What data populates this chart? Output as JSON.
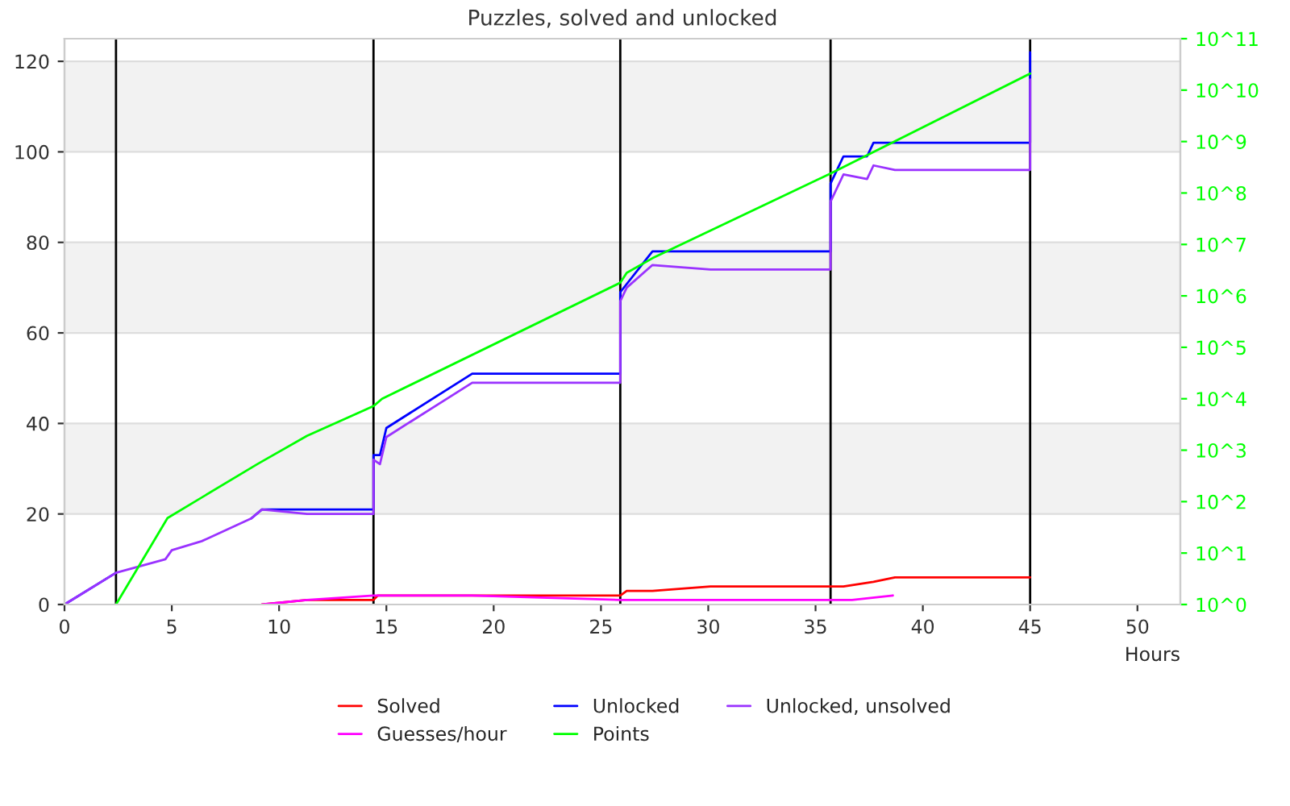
{
  "chart_data": {
    "type": "line",
    "title": "Puzzles, solved and unlocked",
    "xlabel": "Hours",
    "xlim": [
      0,
      52
    ],
    "xticks": [
      0,
      5,
      10,
      15,
      20,
      25,
      30,
      35,
      40,
      45,
      50
    ],
    "ylim": [
      0,
      125
    ],
    "yticks": [
      0,
      20,
      40,
      60,
      80,
      100,
      120
    ],
    "y2lim": [
      1,
      100000000000
    ],
    "y2ticks": [
      {
        "value": 1,
        "label": "10^0"
      },
      {
        "value": 10,
        "label": "10^1"
      },
      {
        "value": 100,
        "label": "10^2"
      },
      {
        "value": 1000,
        "label": "10^3"
      },
      {
        "value": 10000,
        "label": "10^4"
      },
      {
        "value": 100000,
        "label": "10^5"
      },
      {
        "value": 1000000,
        "label": "10^6"
      },
      {
        "value": 10000000,
        "label": "10^7"
      },
      {
        "value": 100000000,
        "label": "10^8"
      },
      {
        "value": 1000000000,
        "label": "10^9"
      },
      {
        "value": 10000000000,
        "label": "10^10"
      },
      {
        "value": 100000000000,
        "label": "10^11"
      }
    ],
    "log": "y2",
    "grid": "y",
    "legend": "bottom",
    "marker": "none",
    "line_style": "solid",
    "ref_lines": [
      {
        "axis": "x",
        "value": 2.4,
        "color": "#000000"
      },
      {
        "axis": "x",
        "value": 14.4,
        "color": "#000000"
      },
      {
        "axis": "x",
        "value": 25.9,
        "color": "#000000"
      },
      {
        "axis": "x",
        "value": 35.7,
        "color": "#000000"
      },
      {
        "axis": "x",
        "value": 45.0,
        "color": "#000000"
      }
    ],
    "series": [
      {
        "name": "Solved",
        "color": "#ff0000",
        "x": [
          9.2,
          11.3,
          14.4,
          14.6,
          25.9,
          26.2,
          27.4,
          30.1,
          36.3,
          37.7,
          38.7,
          45.0
        ],
        "values": [
          0,
          1,
          1,
          2,
          2,
          3,
          3,
          4,
          4,
          5,
          6,
          6
        ]
      },
      {
        "name": "Guesses/hour",
        "color": "#ff00ff",
        "x": [
          9.2,
          11.3,
          14.4,
          19.0,
          25.9,
          36.7,
          38.6
        ],
        "values": [
          0,
          1,
          2,
          2,
          1,
          1,
          2
        ]
      },
      {
        "name": "Unlocked",
        "color": "#0000ff",
        "x": [
          0,
          2.4,
          4.7,
          5.0,
          6.4,
          8.7,
          9.2,
          14.4,
          14.4,
          14.7,
          15.0,
          19.0,
          25.9,
          25.9,
          27.4,
          35.7,
          35.7,
          36.3,
          37.4,
          37.7,
          45.0,
          45.0
        ],
        "values": [
          0,
          7,
          null,
          null,
          null,
          19,
          21,
          21,
          33,
          33,
          39,
          51,
          51,
          69,
          78,
          78,
          93,
          99,
          99,
          102,
          102,
          122
        ]
      },
      {
        "name": "Points",
        "color": "#00ff00",
        "axis": "y2",
        "x": [
          2.4,
          4.8,
          9.0,
          11.3,
          14.4,
          14.8,
          25.9,
          26.2,
          27.4,
          35.7,
          45.0
        ],
        "values": [
          1,
          48,
          540,
          1900,
          7200,
          10000,
          1800000,
          2800000,
          5400000,
          240000000,
          21000000000
        ]
      },
      {
        "name": "Unlocked, unsolved",
        "color": "#9a32ff",
        "x": [
          0,
          2.4,
          4.7,
          5.0,
          6.4,
          8.7,
          9.2,
          11.3,
          14.4,
          14.4,
          14.7,
          15.0,
          19.0,
          25.9,
          25.9,
          26.2,
          27.4,
          30.1,
          35.7,
          35.7,
          36.3,
          37.4,
          37.7,
          38.7,
          45.0,
          45.0
        ],
        "values": [
          0,
          7,
          10,
          12,
          14,
          19,
          21,
          20,
          20,
          32,
          31,
          37,
          49,
          49,
          67,
          70,
          75,
          74,
          74,
          89,
          95,
          94,
          97,
          96,
          96,
          116
        ]
      }
    ]
  }
}
